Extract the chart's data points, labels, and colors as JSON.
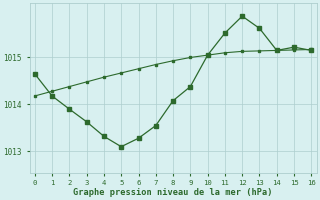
{
  "x": [
    0,
    1,
    2,
    3,
    4,
    5,
    6,
    7,
    8,
    9,
    10,
    11,
    12,
    13,
    14,
    15,
    16
  ],
  "y_main": [
    1014.65,
    1014.18,
    1013.9,
    1013.63,
    1013.32,
    1013.1,
    1013.28,
    1013.55,
    1014.08,
    1014.38,
    1015.05,
    1015.52,
    1015.88,
    1015.62,
    1015.15,
    1015.22,
    1015.15
  ],
  "y_trend": [
    1014.18,
    1014.28,
    1014.38,
    1014.48,
    1014.58,
    1014.67,
    1014.76,
    1014.85,
    1014.93,
    1015.0,
    1015.05,
    1015.1,
    1015.13,
    1015.14,
    1015.15,
    1015.16,
    1015.17
  ],
  "line_color": "#2d6a2d",
  "bg_color": "#d8f0f0",
  "grid_color": "#aecece",
  "xlabel": "Graphe pression niveau de la mer (hPa)",
  "xlim": [
    -0.3,
    16.3
  ],
  "ylim": [
    1012.55,
    1016.15
  ],
  "yticks": [
    1013,
    1014,
    1015
  ],
  "xticks": [
    0,
    1,
    2,
    3,
    4,
    5,
    6,
    7,
    8,
    9,
    10,
    11,
    12,
    13,
    14,
    15,
    16
  ]
}
